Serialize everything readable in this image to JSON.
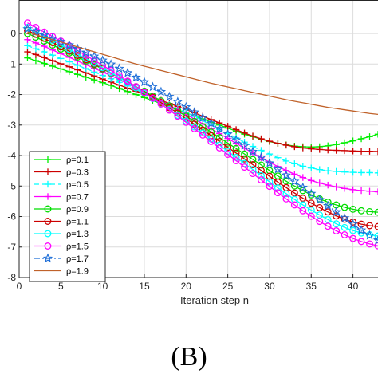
{
  "caption": "(B)",
  "chart_data": {
    "type": "line",
    "xlabel": "Iteration step n",
    "ylabel": "",
    "xlim": [
      0,
      43
    ],
    "ylim": [
      -8,
      1.1
    ],
    "x_ticks": [
      0,
      5,
      10,
      15,
      20,
      25,
      30,
      35,
      40
    ],
    "y_ticks": [
      0,
      -1,
      -2,
      -3,
      -4,
      -5,
      -6,
      -7,
      -8
    ],
    "grid": true,
    "legend_position": "bottom-left",
    "x": [
      1,
      2,
      3,
      4,
      5,
      6,
      7,
      8,
      9,
      10,
      11,
      12,
      13,
      14,
      15,
      16,
      17,
      18,
      19,
      20,
      21,
      22,
      23,
      24,
      25,
      26,
      27,
      28,
      29,
      30,
      31,
      32,
      33,
      34,
      35,
      36,
      37,
      38,
      39,
      40,
      41,
      42,
      43
    ],
    "series": [
      {
        "name": "ρ=0.1",
        "color": "#00ee00",
        "line": "solid",
        "marker": "plus",
        "values": [
          -0.8,
          -0.89,
          -0.98,
          -1.07,
          -1.16,
          -1.25,
          -1.34,
          -1.43,
          -1.52,
          -1.61,
          -1.7,
          -1.8,
          -1.9,
          -2.0,
          -2.1,
          -2.2,
          -2.3,
          -2.4,
          -2.5,
          -2.6,
          -2.7,
          -2.8,
          -2.9,
          -3.0,
          -3.1,
          -3.2,
          -3.3,
          -3.38,
          -3.46,
          -3.54,
          -3.6,
          -3.65,
          -3.69,
          -3.71,
          -3.72,
          -3.71,
          -3.68,
          -3.64,
          -3.58,
          -3.52,
          -3.45,
          -3.38,
          -3.3
        ]
      },
      {
        "name": "ρ=0.3",
        "color": "#cc0000",
        "line": "solid",
        "marker": "plus",
        "values": [
          -0.6,
          -0.69,
          -0.79,
          -0.89,
          -0.99,
          -1.09,
          -1.19,
          -1.29,
          -1.39,
          -1.49,
          -1.59,
          -1.69,
          -1.79,
          -1.89,
          -1.99,
          -2.09,
          -2.19,
          -2.29,
          -2.39,
          -2.49,
          -2.6,
          -2.71,
          -2.82,
          -2.93,
          -3.04,
          -3.15,
          -3.26,
          -3.36,
          -3.45,
          -3.53,
          -3.6,
          -3.66,
          -3.71,
          -3.75,
          -3.78,
          -3.8,
          -3.82,
          -3.83,
          -3.84,
          -3.85,
          -3.86,
          -3.86,
          -3.87
        ]
      },
      {
        "name": "ρ=0.5",
        "color": "#00ffff",
        "line": "dashed",
        "marker": "plus",
        "values": [
          -0.4,
          -0.5,
          -0.6,
          -0.71,
          -0.82,
          -0.93,
          -1.04,
          -1.15,
          -1.26,
          -1.37,
          -1.48,
          -1.6,
          -1.72,
          -1.84,
          -1.96,
          -2.08,
          -2.2,
          -2.33,
          -2.46,
          -2.59,
          -2.72,
          -2.86,
          -3.0,
          -3.14,
          -3.28,
          -3.42,
          -3.56,
          -3.7,
          -3.83,
          -3.95,
          -4.07,
          -4.18,
          -4.27,
          -4.35,
          -4.41,
          -4.46,
          -4.5,
          -4.52,
          -4.54,
          -4.55,
          -4.56,
          -4.56,
          -4.57
        ]
      },
      {
        "name": "ρ=0.7",
        "color": "#ff00ff",
        "line": "solid",
        "marker": "plus",
        "values": [
          -0.2,
          -0.31,
          -0.42,
          -0.54,
          -0.66,
          -0.78,
          -0.9,
          -1.02,
          -1.14,
          -1.26,
          -1.38,
          -1.51,
          -1.64,
          -1.78,
          -1.92,
          -2.06,
          -2.2,
          -2.35,
          -2.5,
          -2.65,
          -2.8,
          -2.96,
          -3.12,
          -3.28,
          -3.44,
          -3.6,
          -3.76,
          -3.92,
          -4.07,
          -4.22,
          -4.36,
          -4.49,
          -4.61,
          -4.72,
          -4.82,
          -4.9,
          -4.97,
          -5.03,
          -5.08,
          -5.12,
          -5.15,
          -5.17,
          -5.19
        ]
      },
      {
        "name": "ρ=0.9",
        "color": "#00dd00",
        "line": "solid",
        "marker": "circle",
        "values": [
          0.0,
          -0.12,
          -0.25,
          -0.38,
          -0.51,
          -0.64,
          -0.77,
          -0.9,
          -1.03,
          -1.16,
          -1.3,
          -1.44,
          -1.59,
          -1.74,
          -1.89,
          -2.05,
          -2.21,
          -2.37,
          -2.54,
          -2.71,
          -2.88,
          -3.05,
          -3.23,
          -3.41,
          -3.59,
          -3.77,
          -3.95,
          -4.13,
          -4.31,
          -4.49,
          -4.67,
          -4.84,
          -5.0,
          -5.15,
          -5.29,
          -5.42,
          -5.53,
          -5.62,
          -5.7,
          -5.76,
          -5.81,
          -5.84,
          -5.86
        ]
      },
      {
        "name": "ρ=1.1",
        "color": "#cc0000",
        "line": "solid",
        "marker": "circle",
        "values": [
          0.1,
          -0.03,
          -0.16,
          -0.3,
          -0.44,
          -0.58,
          -0.72,
          -0.86,
          -1.0,
          -1.14,
          -1.29,
          -1.44,
          -1.6,
          -1.76,
          -1.92,
          -2.09,
          -2.26,
          -2.43,
          -2.61,
          -2.79,
          -2.97,
          -3.16,
          -3.35,
          -3.54,
          -3.73,
          -3.92,
          -4.11,
          -4.3,
          -4.49,
          -4.68,
          -4.87,
          -5.05,
          -5.23,
          -5.4,
          -5.56,
          -5.71,
          -5.85,
          -5.98,
          -6.09,
          -6.18,
          -6.25,
          -6.3,
          -6.33
        ]
      },
      {
        "name": "ρ=1.3",
        "color": "#00ffff",
        "line": "solid",
        "marker": "circle",
        "values": [
          0.2,
          0.06,
          -0.08,
          -0.22,
          -0.37,
          -0.52,
          -0.67,
          -0.82,
          -0.97,
          -1.12,
          -1.28,
          -1.44,
          -1.61,
          -1.78,
          -1.95,
          -2.13,
          -2.31,
          -2.49,
          -2.68,
          -2.87,
          -3.06,
          -3.26,
          -3.46,
          -3.66,
          -3.86,
          -4.06,
          -4.26,
          -4.46,
          -4.66,
          -4.86,
          -5.06,
          -5.25,
          -5.44,
          -5.62,
          -5.79,
          -5.95,
          -6.1,
          -6.24,
          -6.36,
          -6.46,
          -6.54,
          -6.6,
          -6.64
        ]
      },
      {
        "name": "ρ=1.5",
        "color": "#ff00ff",
        "line": "solid",
        "marker": "circle",
        "values": [
          0.35,
          0.2,
          0.05,
          -0.1,
          -0.25,
          -0.4,
          -0.56,
          -0.72,
          -0.88,
          -1.04,
          -1.21,
          -1.38,
          -1.56,
          -1.74,
          -1.93,
          -2.12,
          -2.31,
          -2.51,
          -2.71,
          -2.91,
          -3.12,
          -3.33,
          -3.54,
          -3.75,
          -3.96,
          -4.17,
          -4.38,
          -4.59,
          -4.8,
          -5.01,
          -5.22,
          -5.42,
          -5.62,
          -5.81,
          -5.99,
          -6.16,
          -6.32,
          -6.47,
          -6.6,
          -6.72,
          -6.82,
          -6.9,
          -6.96
        ]
      },
      {
        "name": "ρ=1.7",
        "color": "#1f6fd8",
        "line": "dashdot",
        "marker": "star",
        "values": [
          0.15,
          0.05,
          -0.05,
          -0.16,
          -0.27,
          -0.38,
          -0.5,
          -0.62,
          -0.75,
          -0.88,
          -1.01,
          -1.15,
          -1.29,
          -1.44,
          -1.59,
          -1.75,
          -1.91,
          -2.07,
          -2.24,
          -2.41,
          -2.58,
          -2.76,
          -2.94,
          -3.12,
          -3.3,
          -3.49,
          -3.68,
          -3.87,
          -4.06,
          -4.25,
          -4.45,
          -4.65,
          -4.85,
          -5.05,
          -5.25,
          -5.45,
          -5.65,
          -5.85,
          -6.05,
          -6.25,
          -6.45,
          -6.62,
          -6.78
        ]
      },
      {
        "name": "ρ=1.9",
        "color": "#c0622a",
        "line": "solid",
        "marker": "none",
        "values": [
          0.05,
          -0.04,
          -0.12,
          -0.2,
          -0.28,
          -0.36,
          -0.44,
          -0.52,
          -0.6,
          -0.68,
          -0.76,
          -0.84,
          -0.92,
          -1.0,
          -1.07,
          -1.14,
          -1.21,
          -1.28,
          -1.35,
          -1.42,
          -1.49,
          -1.56,
          -1.63,
          -1.69,
          -1.75,
          -1.81,
          -1.87,
          -1.93,
          -1.99,
          -2.05,
          -2.11,
          -2.17,
          -2.22,
          -2.27,
          -2.32,
          -2.37,
          -2.42,
          -2.46,
          -2.5,
          -2.54,
          -2.58,
          -2.62,
          -2.65
        ]
      }
    ]
  }
}
